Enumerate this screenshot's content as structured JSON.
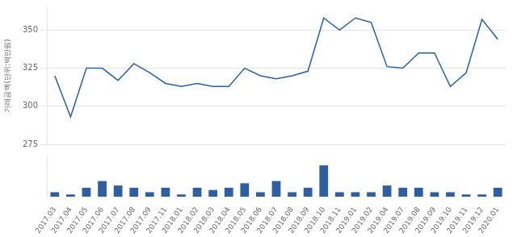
{
  "chart_data": [
    {
      "type": "line",
      "ylabel": "거래금액(단위:백만원)",
      "categories": [
        "2017.03",
        "2017.04",
        "2017.05",
        "2017.06",
        "2017.07",
        "2017.08",
        "2017.09",
        "2017.11",
        "2018.01",
        "2018.02",
        "2018.03",
        "2018.04",
        "2018.05",
        "2018.06",
        "2018.07",
        "2018.08",
        "2018.09",
        "2018.10",
        "2018.11",
        "2019.01",
        "2019.02",
        "2019.04",
        "2019.07",
        "2019.08",
        "2019.09",
        "2019.10",
        "2019.11",
        "2019.12",
        "2020.01"
      ],
      "values": [
        320,
        293,
        325,
        325,
        317,
        328,
        322,
        315,
        313,
        315,
        313,
        313,
        325,
        320,
        318,
        320,
        323,
        358,
        350,
        358,
        355,
        326,
        325,
        335,
        335,
        313,
        322,
        357,
        344
      ],
      "color": "#2461a9",
      "ylim": [
        275,
        365
      ],
      "yticks": [
        275,
        300,
        325,
        350
      ],
      "grid": true,
      "tick_labels": "y"
    },
    {
      "type": "bar",
      "categories": [
        "2017.03",
        "2017.04",
        "2017.05",
        "2017.06",
        "2017.07",
        "2017.08",
        "2017.09",
        "2017.11",
        "2018.01",
        "2018.02",
        "2018.03",
        "2018.04",
        "2018.05",
        "2018.06",
        "2018.07",
        "2018.08",
        "2018.09",
        "2018.10",
        "2018.11",
        "2019.01",
        "2019.02",
        "2019.04",
        "2019.07",
        "2019.08",
        "2019.09",
        "2019.10",
        "2019.11",
        "2019.12",
        "2020.01"
      ],
      "values": [
        1,
        0.5,
        2,
        3.5,
        2.5,
        2,
        1,
        2,
        0.5,
        2,
        1.5,
        2,
        3,
        1,
        3.5,
        1,
        2,
        7,
        1,
        1,
        1,
        2.5,
        2,
        2,
        1,
        1,
        0.5,
        0.5,
        2
      ],
      "color": "#2e5fa3",
      "ylim": [
        0,
        9
      ],
      "grid": false,
      "tick_labels": "x"
    }
  ]
}
